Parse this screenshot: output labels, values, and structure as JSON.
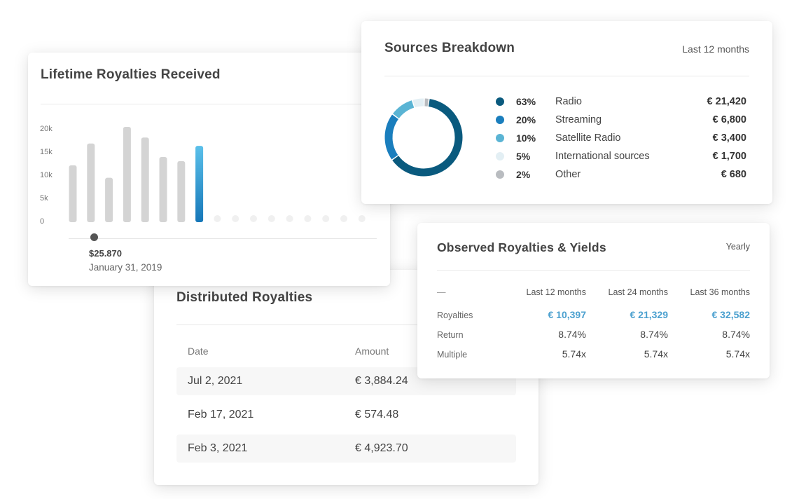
{
  "colors": {
    "bar_gray": "#d4d4d4",
    "bar_active_top": "#5bc0ea",
    "bar_active_bottom": "#1677b8",
    "placeholder": "#f0f0f0",
    "accent": "#4ba0cf"
  },
  "lifetime": {
    "title": "Lifetime Royalties Received",
    "yticks": [
      "20k",
      "15k",
      "10k",
      "5k",
      "0"
    ],
    "marker_value": "$25.870",
    "marker_date": "January 31, 2019"
  },
  "chart_data": {
    "type": "bar",
    "ylim": [
      0,
      20000
    ],
    "values": [
      12300,
      17000,
      9600,
      20600,
      18300,
      14100,
      13200,
      16500,
      null,
      null,
      null,
      null,
      null,
      null,
      null,
      null,
      null
    ],
    "highlighted_index": 7
  },
  "sources": {
    "title": "Sources Breakdown",
    "period": "Last 12 months",
    "items": [
      {
        "pct": "63%",
        "label": "Radio",
        "value": "€ 21,420",
        "share": 63,
        "color": "#0a5a7e"
      },
      {
        "pct": "20%",
        "label": "Streaming",
        "value": "€ 6,800",
        "share": 20,
        "color": "#1a7ebd"
      },
      {
        "pct": "10%",
        "label": "Satellite Radio",
        "value": "€ 3,400",
        "share": 10,
        "color": "#5ab4d4"
      },
      {
        "pct": "5%",
        "label": "International sources",
        "value": "€ 1,700",
        "share": 5,
        "color": "#e3eff4"
      },
      {
        "pct": "2%",
        "label": "Other",
        "value": "€ 680",
        "share": 2,
        "color": "#b9bcc0"
      }
    ]
  },
  "distributed": {
    "title": "Distributed Royalties",
    "col_date": "Date",
    "col_amount": "Amount",
    "rows": [
      {
        "date": "Jul 2, 2021",
        "amount": "€ 3,884.24"
      },
      {
        "date": "Feb 17, 2021",
        "amount": "€ 574.48"
      },
      {
        "date": "Feb 3, 2021",
        "amount": "€ 4,923.70"
      }
    ]
  },
  "observed": {
    "title": "Observed Royalties & Yields",
    "period": "Yearly",
    "corner": "—",
    "columns": [
      "Last 12 months",
      "Last 24 months",
      "Last 36 months"
    ],
    "rows": [
      {
        "label": "Royalties",
        "values": [
          "€ 10,397",
          "€ 21,329",
          "€ 32,582"
        ]
      },
      {
        "label": "Return",
        "values": [
          "8.74%",
          "8.74%",
          "8.74%"
        ]
      },
      {
        "label": "Multiple",
        "values": [
          "5.74x",
          "5.74x",
          "5.74x"
        ]
      }
    ]
  }
}
